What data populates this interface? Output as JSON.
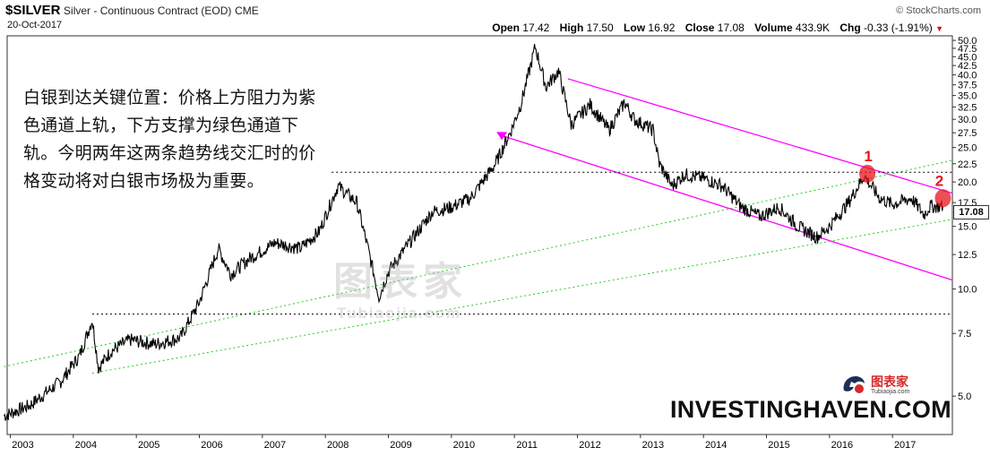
{
  "header": {
    "symbol": "$SILVER",
    "description": "Silver - Continuous Contract (EOD)",
    "exchange": "CME",
    "date": "20-Oct-2017",
    "credit": "© StockCharts.com"
  },
  "quote": {
    "open_label": "Open",
    "open": "17.42",
    "high_label": "High",
    "high": "17.50",
    "low_label": "Low",
    "low": "16.92",
    "close_label": "Close",
    "close": "17.08",
    "volume_label": "Volume",
    "volume": "433.9K",
    "chg_label": "Chg",
    "chg": "-0.33 (-1.91%)",
    "chg_arrow": "▼"
  },
  "note": "白银到达关键位置：价格上方阻力为紫色通道上轨，下方支撑为绿色通道下轨。今明两年这两条趋势线交汇时的价格变动将对白银市场极为重要。",
  "watermark": {
    "main": "图表家",
    "sub": "Tubiaojia.com"
  },
  "brand": "INVESTINGHAVEN.COM",
  "logo": {
    "text": "图表家",
    "sub": "Tubiaojia.com"
  },
  "chart_data": {
    "type": "line",
    "scale": "log",
    "x_ticks": [
      "2003",
      "2004",
      "2005",
      "2006",
      "2007",
      "2008",
      "2009",
      "2010",
      "2011",
      "2012",
      "2013",
      "2014",
      "2015",
      "2016",
      "2017"
    ],
    "y_ticks": [
      "50.0",
      "47.5",
      "45.0",
      "42.5",
      "40.0",
      "37.5",
      "35.0",
      "32.5",
      "30.0",
      "27.5",
      "25.0",
      "22.5",
      "20.0",
      "17.5",
      "15.0",
      "12.5",
      "10.0",
      "7.5",
      "5.0"
    ],
    "last_value_label": "17.08",
    "x": [
      2002.9,
      2003.3,
      2003.8,
      2004.1,
      2004.3,
      2004.4,
      2004.6,
      2004.9,
      2005.3,
      2005.7,
      2006.0,
      2006.3,
      2006.5,
      2006.8,
      2007.2,
      2007.6,
      2007.9,
      2008.2,
      2008.5,
      2008.7,
      2008.85,
      2009.0,
      2009.4,
      2009.7,
      2010.0,
      2010.3,
      2010.7,
      2010.95,
      2011.1,
      2011.25,
      2011.33,
      2011.5,
      2011.7,
      2011.9,
      2012.2,
      2012.5,
      2012.75,
      2012.9,
      2013.2,
      2013.3,
      2013.5,
      2013.7,
      2014.0,
      2014.3,
      2014.6,
      2014.9,
      2015.2,
      2015.5,
      2015.8,
      2016.0,
      2016.3,
      2016.55,
      2016.8,
      2017.0,
      2017.3,
      2017.5,
      2017.6,
      2017.8
    ],
    "close": [
      4.4,
      4.7,
      5.5,
      6.5,
      8.2,
      6.0,
      6.7,
      7.2,
      7.0,
      7.3,
      9.2,
      13.0,
      11.0,
      12.2,
      13.5,
      13.0,
      14.5,
      19.5,
      17.5,
      12.5,
      9.5,
      11.2,
      14.0,
      16.5,
      17.0,
      18.0,
      22.5,
      28.0,
      33.0,
      42.0,
      48.0,
      37.0,
      41.0,
      29.0,
      33.0,
      28.0,
      33.5,
      30.0,
      28.0,
      22.5,
      19.5,
      21.0,
      20.5,
      19.5,
      17.0,
      16.0,
      17.0,
      15.0,
      14.0,
      15.0,
      17.5,
      20.8,
      18.0,
      17.3,
      18.0,
      16.2,
      17.1,
      17.08
    ],
    "series": [
      {
        "name": "",
        "color": "#ff00ff",
        "role": "purple channel upper",
        "start": [
          2011.85,
          39.0
        ],
        "end": [
          2017.95,
          18.6
        ]
      },
      {
        "name": "",
        "color": "#ff00ff",
        "role": "purple channel lower",
        "start": [
          2010.8,
          27.0
        ],
        "end": [
          2017.95,
          10.6
        ]
      },
      {
        "name": "",
        "color": "#22cc22",
        "role": "green channel upper",
        "start": [
          2002.9,
          6.05
        ],
        "end": [
          2017.95,
          23.0
        ]
      },
      {
        "name": "",
        "color": "#22cc22",
        "role": "green channel lower",
        "start": [
          2004.3,
          5.8
        ],
        "end": [
          2017.95,
          15.7
        ]
      },
      {
        "name": "",
        "color": "#000000",
        "role": "horizontal resistance",
        "y": 21.3,
        "from": 2008.1,
        "to": 2017.95
      },
      {
        "name": "",
        "color": "#000000",
        "role": "horizontal support",
        "y": 8.5,
        "from": 2004.3,
        "to": 2017.95
      }
    ],
    "annotations": [
      {
        "label": "1",
        "x": 2016.6,
        "y": 21.1,
        "color": "#e8141c"
      },
      {
        "label": "2",
        "x": 2017.8,
        "y": 18.0,
        "color": "#e8141c"
      }
    ],
    "grid": false,
    "legend": "none"
  }
}
